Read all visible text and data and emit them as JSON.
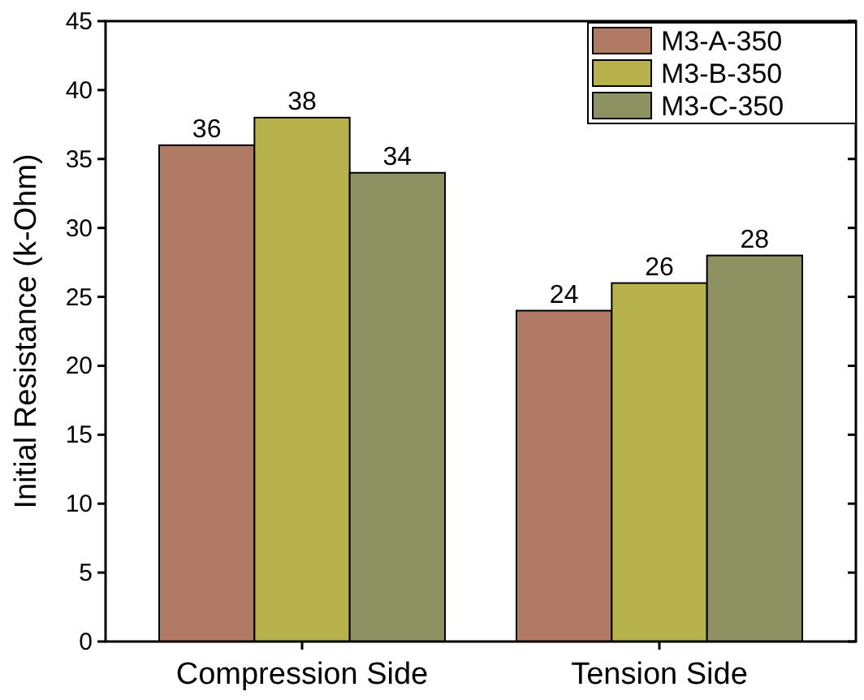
{
  "chart_data": {
    "type": "bar",
    "ylabel": "Initial Resistance (k-Ohm)",
    "categories": [
      "Compression Side",
      "Tension Side"
    ],
    "series": [
      {
        "name": "M3-A-350",
        "color": "#b07a64",
        "values": [
          36,
          24
        ]
      },
      {
        "name": "M3-B-350",
        "color": "#b8b24c",
        "values": [
          38,
          26
        ]
      },
      {
        "name": "M3-C-350",
        "color": "#8e9262",
        "values": [
          34,
          28
        ]
      }
    ],
    "ylim": [
      0,
      45
    ],
    "yticks": [
      0,
      5,
      10,
      15,
      20,
      25,
      30,
      35,
      40,
      45
    ],
    "data_labels": true,
    "legend": "top right",
    "grid": false
  }
}
